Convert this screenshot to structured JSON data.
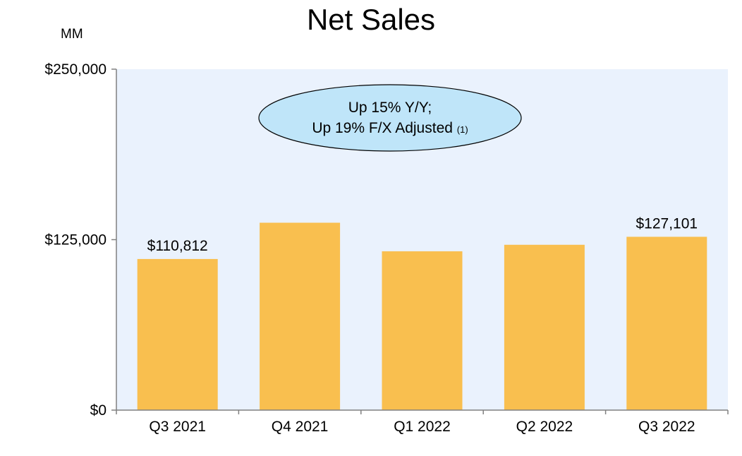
{
  "title": "Net Sales",
  "unit_label": "MM",
  "callout": {
    "line1": "Up 15% Y/Y;",
    "line2": "Up 19% F/X Adjusted",
    "footnote": "(1)"
  },
  "colors": {
    "plot_background": "#eaf2fd",
    "bar": "#f9bf4f",
    "callout_fill": "#bfe5f9",
    "axis": "#808080"
  },
  "chart_data": {
    "type": "bar",
    "title": "Net Sales",
    "xlabel": "",
    "ylabel": "MM",
    "categories": [
      "Q3 2021",
      "Q4 2021",
      "Q1 2022",
      "Q2 2022",
      "Q3 2022"
    ],
    "values": [
      110812,
      137412,
      116444,
      121234,
      127101
    ],
    "data_labels": [
      "$110,812",
      "",
      "",
      "",
      "$127,101"
    ],
    "ylim": [
      0,
      250000
    ],
    "yticks": [
      0,
      125000,
      250000
    ],
    "ytick_labels": [
      "$0",
      "$125,000",
      "$250,000"
    ],
    "grid": false,
    "legend": "none"
  }
}
